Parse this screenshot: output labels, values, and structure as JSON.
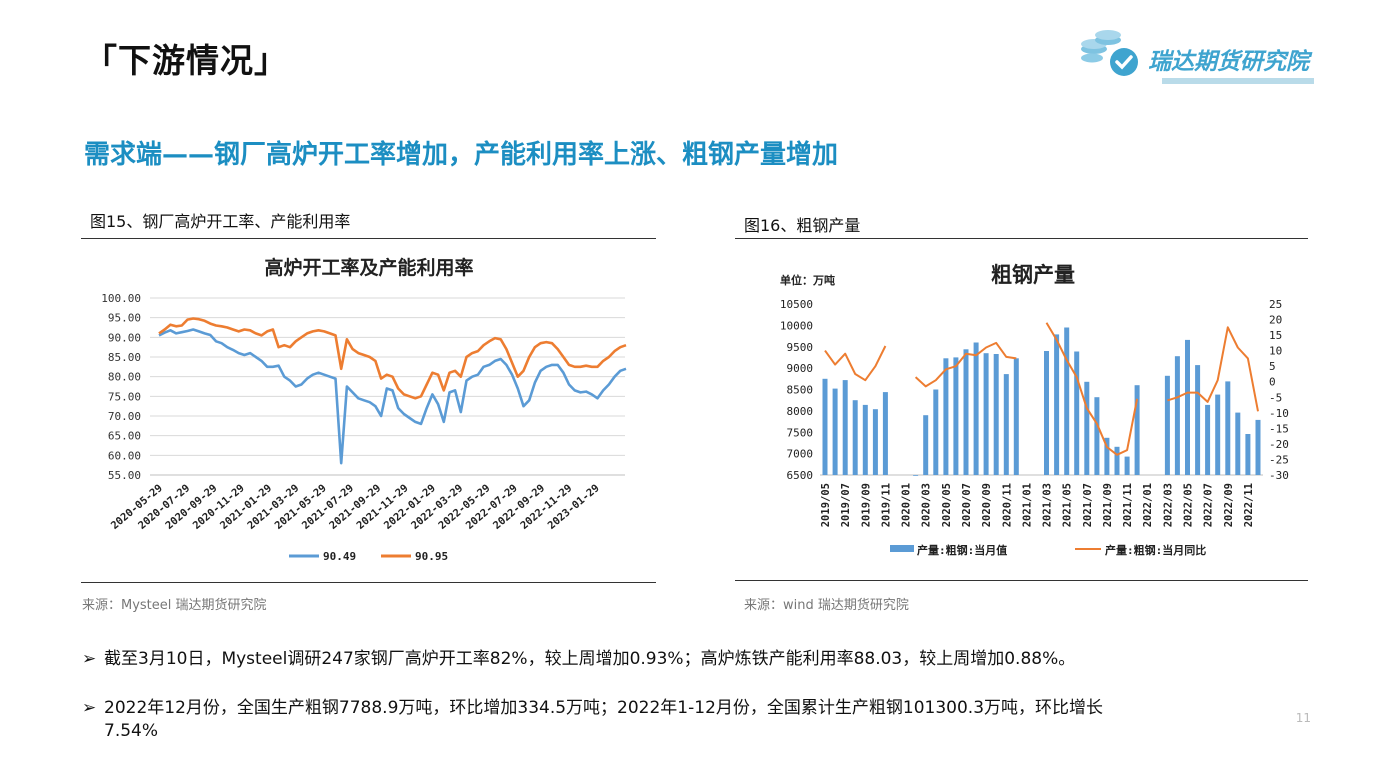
{
  "header": {
    "title": "「下游情况」",
    "brand": "瑞达期货研究院",
    "subtitle": "需求端——钢厂高炉开工率增加，产能利用率上涨、粗钢产量增加"
  },
  "figure_left": {
    "caption": "图15、钢厂高炉开工率、产能利用率",
    "source": "来源：Mysteel   瑞达期货研究院"
  },
  "figure_right": {
    "caption": "图16、粗钢产量",
    "source": "来源：wind  瑞达期货研究院"
  },
  "bullets": [
    "截至3月10日，Mysteel调研247家钢厂高炉开工率82%，较上周增加0.93%；高炉炼铁产能利用率88.03，较上周增加0.88%。",
    "2022年12月份，全国生产粗钢7788.9万吨，环比增加334.5万吨；2022年1-12月份，全国累计生产粗钢101300.3万吨，环比增长",
    "7.54%"
  ],
  "page_number": "11",
  "colors": {
    "blue": "#5b9bd5",
    "orange": "#ed7d31",
    "title_blue": "#1c8ec2"
  },
  "chart_data": [
    {
      "type": "line",
      "title": "高炉开工率及产能利用率",
      "ylim": [
        55,
        100
      ],
      "yticks": [
        "100.00",
        "95.00",
        "90.00",
        "85.00",
        "80.00",
        "75.00",
        "70.00",
        "65.00",
        "60.00",
        "55.00"
      ],
      "x_ticks": [
        "2020-05-29",
        "2020-07-29",
        "2020-09-29",
        "2020-11-29",
        "2021-01-29",
        "2021-03-29",
        "2021-05-29",
        "2021-07-29",
        "2021-09-29",
        "2021-11-29",
        "2022-01-29",
        "2022-03-29",
        "2022-05-29",
        "2022-07-29",
        "2022-09-29",
        "2022-11-29",
        "2023-01-29"
      ],
      "legend_position": "bottom",
      "grid": true,
      "series": [
        {
          "name": "90.49",
          "color": "#5b9bd5",
          "values": [
            90.5,
            91.2,
            91.8,
            91.0,
            91.3,
            91.6,
            92.0,
            91.5,
            91.0,
            90.6,
            89.0,
            88.5,
            87.5,
            86.8,
            86.0,
            85.5,
            86.0,
            85.0,
            84.0,
            82.5,
            82.5,
            82.8,
            80.0,
            79.0,
            77.5,
            78.0,
            79.5,
            80.5,
            81.0,
            80.5,
            80.0,
            79.5,
            58.0,
            77.5,
            76.0,
            74.5,
            74.0,
            73.5,
            72.5,
            70.0,
            77.0,
            76.5,
            72.0,
            70.5,
            69.5,
            68.5,
            68.0,
            72.0,
            75.5,
            73.0,
            68.5,
            76.0,
            76.5,
            71.0,
            79.0,
            80.0,
            80.5,
            82.5,
            83.0,
            84.0,
            84.5,
            83.0,
            80.5,
            77.0,
            72.5,
            74.0,
            78.5,
            81.5,
            82.5,
            83.0,
            83.0,
            81.0,
            78.0,
            76.5,
            76.0,
            76.2,
            75.5,
            74.5,
            76.5,
            78.0,
            80.0,
            81.5,
            82.0
          ]
        },
        {
          "name": "90.95",
          "color": "#ed7d31",
          "values": [
            91.0,
            92.0,
            93.2,
            92.8,
            93.0,
            94.5,
            94.8,
            94.6,
            94.2,
            93.5,
            93.0,
            92.8,
            92.5,
            92.0,
            91.5,
            92.0,
            91.8,
            91.0,
            90.5,
            91.5,
            92.0,
            87.5,
            88.0,
            87.5,
            89.0,
            90.0,
            91.0,
            91.5,
            91.8,
            91.5,
            91.0,
            90.5,
            82.0,
            89.5,
            87.0,
            86.0,
            85.5,
            85.0,
            84.0,
            79.5,
            80.5,
            80.0,
            77.0,
            75.5,
            75.0,
            74.5,
            75.0,
            78.0,
            81.0,
            80.5,
            76.5,
            81.0,
            81.5,
            80.0,
            85.0,
            86.0,
            86.5,
            88.0,
            89.0,
            89.8,
            89.5,
            87.0,
            83.5,
            80.0,
            81.5,
            85.0,
            87.5,
            88.5,
            88.8,
            88.5,
            87.0,
            85.0,
            83.0,
            82.5,
            82.5,
            82.8,
            82.5,
            82.5,
            84.0,
            85.0,
            86.5,
            87.5,
            88.0
          ]
        }
      ]
    },
    {
      "type": "bar",
      "title": "粗钢产量",
      "unit_label": "单位：万吨",
      "ylim": [
        6500,
        10500
      ],
      "y2lim": [
        -30,
        25
      ],
      "yticks": [
        "10500",
        "10000",
        "9500",
        "9000",
        "8500",
        "8000",
        "7500",
        "7000",
        "6500"
      ],
      "y2ticks": [
        "25",
        "20",
        "15",
        "10",
        "5",
        "0",
        "-5",
        "-10",
        "-15",
        "-20",
        "-25",
        "-30"
      ],
      "categories": [
        "2019/05",
        "2019/06",
        "2019/07",
        "2019/08",
        "2019/09",
        "2019/10",
        "2019/11",
        "2019/12",
        "2020/01",
        "2020/02",
        "2020/03",
        "2020/04",
        "2020/05",
        "2020/06",
        "2020/07",
        "2020/08",
        "2020/09",
        "2020/10",
        "2020/11",
        "2020/12",
        "2021/01",
        "2021/02",
        "2021/03",
        "2021/04",
        "2021/05",
        "2021/06",
        "2021/07",
        "2021/08",
        "2021/09",
        "2021/10",
        "2021/11",
        "2021/12",
        "2022/01",
        "2022/02",
        "2022/03",
        "2022/04",
        "2022/05",
        "2022/06",
        "2022/07",
        "2022/08",
        "2022/09",
        "2022/10",
        "2022/11",
        "2022/12"
      ],
      "x_tick_labels": [
        "2019/05",
        "2019/07",
        "2019/09",
        "2019/11",
        "2020/01",
        "2020/03",
        "2020/05",
        "2020/07",
        "2020/09",
        "2020/11",
        "2021/01",
        "2021/03",
        "2021/05",
        "2021/07",
        "2021/09",
        "2021/11",
        "2022/01",
        "2022/03",
        "2022/05",
        "2022/07",
        "2022/09",
        "2022/11"
      ],
      "legend_position": "bottom",
      "series": [
        {
          "name": "产量:粗钢:当月值",
          "type": "bar",
          "color": "#5b9bd5",
          "values": [
            8750,
            8520,
            8720,
            8250,
            8140,
            8040,
            8440,
            null,
            null,
            6500,
            7900,
            8500,
            9230,
            9250,
            9440,
            9600,
            9350,
            9330,
            8860,
            9230,
            null,
            null,
            9400,
            9790,
            9950,
            9390,
            8680,
            8320,
            7370,
            7160,
            6930,
            8600,
            null,
            null,
            8820,
            9280,
            9660,
            9070,
            8140,
            8380,
            8690,
            7960,
            7460,
            7790
          ]
        },
        {
          "name": "产量:粗钢:当月同比",
          "type": "line",
          "color": "#ed7d31",
          "values": [
            10.0,
            5.5,
            9.0,
            2.5,
            0.5,
            5.0,
            11.5,
            null,
            null,
            1.5,
            -1.5,
            0.5,
            4.0,
            5.0,
            9.0,
            8.5,
            11.0,
            12.5,
            8.0,
            7.5,
            null,
            null,
            19.0,
            13.5,
            7.0,
            1.5,
            -8.5,
            -13.5,
            -21.0,
            -23.5,
            -22.0,
            -5.5,
            null,
            null,
            -6.0,
            -5.0,
            -3.5,
            -3.5,
            -6.5,
            0.5,
            17.5,
            11.0,
            7.5,
            -9.5
          ]
        }
      ]
    }
  ]
}
